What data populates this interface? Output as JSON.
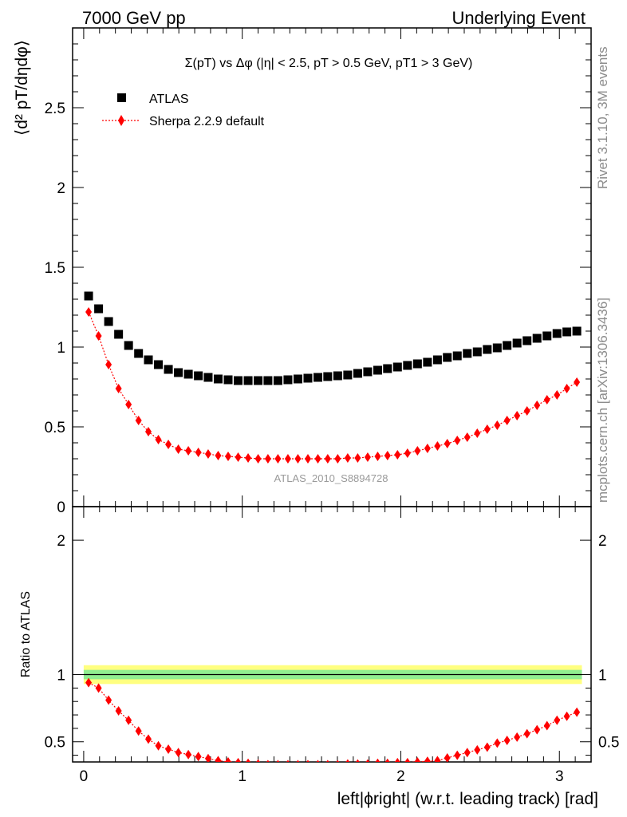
{
  "header": {
    "left": "7000 GeV pp",
    "right": "Underlying Event"
  },
  "side_labels": {
    "rivet": "Rivet 3.1.10,  3M events",
    "mcplots": "mcplots.cern.ch [arXiv:1306.3436]"
  },
  "watermark": "ATLAS_2010_S8894728",
  "colors": {
    "data": "#000000",
    "mc": "#ff0000",
    "band_outer": "#ffff80",
    "band_inner": "#90ee90"
  },
  "chart_data": [
    {
      "type": "scatter",
      "title": "Σ(pT) vs Δφ (|η| < 2.5, pT > 0.5 GeV, pT1 > 3 GeV)",
      "ylabel": "⟨d² pT/dηdφ⟩",
      "xlim": [
        -0.07,
        3.2
      ],
      "ylim": [
        0,
        3.0
      ],
      "yticks": [
        0,
        0.5,
        1,
        1.5,
        2,
        2.5
      ],
      "ytick_labels": [
        "0",
        "0.5",
        "1",
        "1.5",
        "2",
        "2.5"
      ],
      "legend": [
        "ATLAS",
        "Sherpa 2.2.9 default"
      ],
      "legend_position": "top-left",
      "x": [
        0.031,
        0.094,
        0.157,
        0.22,
        0.283,
        0.346,
        0.408,
        0.471,
        0.534,
        0.597,
        0.66,
        0.723,
        0.785,
        0.848,
        0.911,
        0.974,
        1.037,
        1.1,
        1.162,
        1.225,
        1.288,
        1.351,
        1.414,
        1.477,
        1.539,
        1.602,
        1.665,
        1.728,
        1.791,
        1.854,
        1.916,
        1.979,
        2.042,
        2.105,
        2.168,
        2.231,
        2.293,
        2.356,
        2.419,
        2.482,
        2.545,
        2.608,
        2.67,
        2.733,
        2.796,
        2.859,
        2.922,
        2.985,
        3.047,
        3.11
      ],
      "series": [
        {
          "name": "ATLAS",
          "values": [
            1.32,
            1.24,
            1.16,
            1.08,
            1.01,
            0.96,
            0.92,
            0.89,
            0.86,
            0.84,
            0.83,
            0.82,
            0.81,
            0.8,
            0.795,
            0.79,
            0.79,
            0.79,
            0.79,
            0.79,
            0.795,
            0.8,
            0.805,
            0.81,
            0.815,
            0.82,
            0.825,
            0.835,
            0.845,
            0.855,
            0.865,
            0.875,
            0.885,
            0.895,
            0.905,
            0.92,
            0.935,
            0.945,
            0.96,
            0.97,
            0.985,
            0.995,
            1.01,
            1.025,
            1.04,
            1.055,
            1.07,
            1.085,
            1.095,
            1.1
          ]
        },
        {
          "name": "Sherpa 2.2.9 default",
          "values": [
            1.22,
            1.07,
            0.89,
            0.74,
            0.64,
            0.54,
            0.47,
            0.42,
            0.39,
            0.36,
            0.35,
            0.34,
            0.33,
            0.32,
            0.315,
            0.31,
            0.305,
            0.3,
            0.3,
            0.3,
            0.3,
            0.3,
            0.3,
            0.3,
            0.3,
            0.3,
            0.305,
            0.305,
            0.31,
            0.315,
            0.32,
            0.325,
            0.335,
            0.35,
            0.365,
            0.38,
            0.395,
            0.415,
            0.435,
            0.46,
            0.485,
            0.51,
            0.54,
            0.57,
            0.6,
            0.635,
            0.67,
            0.7,
            0.74,
            0.78
          ]
        }
      ]
    },
    {
      "type": "line",
      "ylabel": "Ratio to ATLAS",
      "xlabel": "left|ϕright| (w.r.t. leading track) [rad]",
      "xlim": [
        -0.07,
        3.2
      ],
      "ylim": [
        0.35,
        2.25
      ],
      "xticks": [
        0,
        1,
        2,
        3
      ],
      "xtick_labels": [
        "0",
        "1",
        "2",
        "3"
      ],
      "yticks": [
        0.5,
        1,
        2
      ],
      "ytick_labels": [
        "0.5",
        "1",
        "2"
      ],
      "band_outer": [
        0.93,
        1.07
      ],
      "band_inner": [
        0.965,
        1.035
      ],
      "x": [
        0.031,
        0.094,
        0.157,
        0.22,
        0.283,
        0.346,
        0.408,
        0.471,
        0.534,
        0.597,
        0.66,
        0.723,
        0.785,
        0.848,
        0.911,
        0.974,
        1.037,
        1.1,
        1.162,
        1.225,
        1.288,
        1.351,
        1.414,
        1.477,
        1.539,
        1.602,
        1.665,
        1.728,
        1.791,
        1.854,
        1.916,
        1.979,
        2.042,
        2.105,
        2.168,
        2.231,
        2.293,
        2.356,
        2.419,
        2.482,
        2.545,
        2.608,
        2.67,
        2.733,
        2.796,
        2.859,
        2.922,
        2.985,
        3.047,
        3.11
      ],
      "series": [
        {
          "name": "Sherpa 2.2.9 default / ATLAS",
          "values": [
            0.94,
            0.9,
            0.81,
            0.73,
            0.66,
            0.58,
            0.52,
            0.47,
            0.445,
            0.42,
            0.405,
            0.39,
            0.375,
            0.36,
            0.35,
            0.345,
            0.34,
            0.335,
            0.33,
            0.33,
            0.33,
            0.33,
            0.33,
            0.33,
            0.33,
            0.33,
            0.335,
            0.335,
            0.335,
            0.34,
            0.34,
            0.345,
            0.345,
            0.35,
            0.355,
            0.36,
            0.38,
            0.4,
            0.42,
            0.44,
            0.46,
            0.49,
            0.51,
            0.535,
            0.56,
            0.59,
            0.62,
            0.66,
            0.69,
            0.72
          ]
        }
      ]
    }
  ]
}
